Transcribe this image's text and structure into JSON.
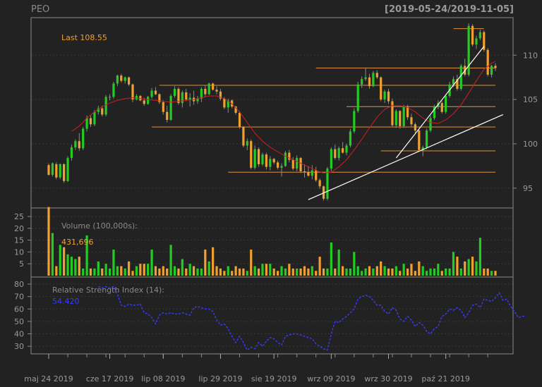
{
  "symbol": "PEO",
  "date_range": "[2019-05-24/2019-11-05]",
  "colors": {
    "background": "#222222",
    "up": "#22cc22",
    "down": "#f0a030",
    "grid": "#3a3a3a",
    "sma": "#cc2020",
    "rsi": "#3a3aff",
    "levels": "#e09040",
    "trendlines": "#ffffff",
    "last_label": "#f0a030",
    "panel_label": "#8a8a8a"
  },
  "chart_data": [
    {
      "type": "candlestick",
      "label": "Last 108.55",
      "ylim": [
        93,
        114
      ],
      "y_ticks": [
        95,
        100,
        105,
        110
      ],
      "x_tick_labels": [
        "maj 24 2019",
        "cze 17 2019",
        "lip 08 2019",
        "lip 29 2019",
        "sie 19 2019",
        "wrz 09 2019",
        "wrz 30 2019",
        "paź 21 2019"
      ],
      "x_tick_index": [
        0,
        16,
        30,
        45,
        59,
        74,
        89,
        104
      ],
      "n_periods": 118,
      "ohlc": [
        [
          97.6,
          97.8,
          96.4,
          96.5
        ],
        [
          96.5,
          97.9,
          96.3,
          97.8
        ],
        [
          97.7,
          97.9,
          96.0,
          96.2
        ],
        [
          96.2,
          97.8,
          96.0,
          97.7
        ],
        [
          97.7,
          97.8,
          95.6,
          95.8
        ],
        [
          95.8,
          98.6,
          95.7,
          98.4
        ],
        [
          98.4,
          99.9,
          98.1,
          99.6
        ],
        [
          99.6,
          100.5,
          99.3,
          100.3
        ],
        [
          100.3,
          101.2,
          99.2,
          99.5
        ],
        [
          99.5,
          101.9,
          99.3,
          101.7
        ],
        [
          101.7,
          103.2,
          101.4,
          102.9
        ],
        [
          102.9,
          103.2,
          101.9,
          102.2
        ],
        [
          102.2,
          103.8,
          102.0,
          103.6
        ],
        [
          103.6,
          104.3,
          103.3,
          104.0
        ],
        [
          104.0,
          104.3,
          103.1,
          103.3
        ],
        [
          103.3,
          105.5,
          103.1,
          105.3
        ],
        [
          105.3,
          105.6,
          104.9,
          105.3
        ],
        [
          105.3,
          107.0,
          105.1,
          106.8
        ],
        [
          106.8,
          107.8,
          106.5,
          107.7
        ],
        [
          107.7,
          107.9,
          106.9,
          107.1
        ],
        [
          107.1,
          107.6,
          106.8,
          107.5
        ],
        [
          107.5,
          107.6,
          106.5,
          106.7
        ],
        [
          106.7,
          106.8,
          104.7,
          105.0
        ],
        [
          105.0,
          105.6,
          104.9,
          105.4
        ],
        [
          105.4,
          105.5,
          104.8,
          104.9
        ],
        [
          104.9,
          105.2,
          104.3,
          104.5
        ],
        [
          104.5,
          105.4,
          104.4,
          105.3
        ],
        [
          105.3,
          106.3,
          105.1,
          106.0
        ],
        [
          106.0,
          106.4,
          105.5,
          105.6
        ],
        [
          105.6,
          105.7,
          104.5,
          104.7
        ],
        [
          104.7,
          104.9,
          103.3,
          103.6
        ],
        [
          103.6,
          104.3,
          102.4,
          102.7
        ],
        [
          102.7,
          105.6,
          102.6,
          105.4
        ],
        [
          105.4,
          106.5,
          105.2,
          106.2
        ],
        [
          106.2,
          106.4,
          104.4,
          104.6
        ],
        [
          104.6,
          106.0,
          104.1,
          105.8
        ],
        [
          105.8,
          106.2,
          104.8,
          105.0
        ],
        [
          105.0,
          105.7,
          104.2,
          105.2
        ],
        [
          105.2,
          106.0,
          104.4,
          104.8
        ],
        [
          104.8,
          105.4,
          104.5,
          105.1
        ],
        [
          105.1,
          106.4,
          104.7,
          106.2
        ],
        [
          106.2,
          106.6,
          105.3,
          105.6
        ],
        [
          105.6,
          106.9,
          105.5,
          106.8
        ],
        [
          106.8,
          106.9,
          106.0,
          106.1
        ],
        [
          106.1,
          106.5,
          105.6,
          105.9
        ],
        [
          105.9,
          106.2,
          104.9,
          105.1
        ],
        [
          105.1,
          105.3,
          103.9,
          104.1
        ],
        [
          104.1,
          105.1,
          103.5,
          104.9
        ],
        [
          104.9,
          105.0,
          104.0,
          104.2
        ],
        [
          104.2,
          104.3,
          103.3,
          103.5
        ],
        [
          103.5,
          103.7,
          101.7,
          101.9
        ],
        [
          101.9,
          102.0,
          99.6,
          99.8
        ],
        [
          99.8,
          100.6,
          99.3,
          100.3
        ],
        [
          100.3,
          100.5,
          97.1,
          97.3
        ],
        [
          97.3,
          99.8,
          97.1,
          99.4
        ],
        [
          99.4,
          99.6,
          97.4,
          97.7
        ],
        [
          97.7,
          99.0,
          97.5,
          98.8
        ],
        [
          98.8,
          99.0,
          97.1,
          97.4
        ],
        [
          97.4,
          98.6,
          97.0,
          98.3
        ],
        [
          98.3,
          98.4,
          97.7,
          97.9
        ],
        [
          97.9,
          98.1,
          97.1,
          97.3
        ],
        [
          97.3,
          97.8,
          96.3,
          97.5
        ],
        [
          97.5,
          99.2,
          97.4,
          99.0
        ],
        [
          99.0,
          99.3,
          97.9,
          98.2
        ],
        [
          98.2,
          98.5,
          97.0,
          97.2
        ],
        [
          97.2,
          98.7,
          96.9,
          98.4
        ],
        [
          98.4,
          98.5,
          96.7,
          96.9
        ],
        [
          96.9,
          97.7,
          96.2,
          96.8
        ],
        [
          96.8,
          97.5,
          96.3,
          96.4
        ],
        [
          96.4,
          97.6,
          96.0,
          97.0
        ],
        [
          97.0,
          97.4,
          95.7,
          95.9
        ],
        [
          95.9,
          96.1,
          94.9,
          95.2
        ],
        [
          95.2,
          95.3,
          93.6,
          93.8
        ],
        [
          93.8,
          97.4,
          93.6,
          97.2
        ],
        [
          97.2,
          99.6,
          96.9,
          99.4
        ],
        [
          99.4,
          99.9,
          98.2,
          98.4
        ],
        [
          98.4,
          99.7,
          98.1,
          99.5
        ],
        [
          99.5,
          100.2,
          98.9,
          99.0
        ],
        [
          99.0,
          100.0,
          98.7,
          99.8
        ],
        [
          99.8,
          101.7,
          99.6,
          101.4
        ],
        [
          101.4,
          104.0,
          101.2,
          103.7
        ],
        [
          103.7,
          107.0,
          103.5,
          106.7
        ],
        [
          106.7,
          107.6,
          106.3,
          107.3
        ],
        [
          107.3,
          108.6,
          107.1,
          107.5
        ],
        [
          107.5,
          107.9,
          106.2,
          106.5
        ],
        [
          106.5,
          108.2,
          106.4,
          108.0
        ],
        [
          108.0,
          108.3,
          107.3,
          107.5
        ],
        [
          107.5,
          107.6,
          104.8,
          105.0
        ],
        [
          105.0,
          106.1,
          104.6,
          105.9
        ],
        [
          105.9,
          106.2,
          104.5,
          104.8
        ],
        [
          104.8,
          105.1,
          101.9,
          102.1
        ],
        [
          102.1,
          103.9,
          101.8,
          103.7
        ],
        [
          103.7,
          103.8,
          101.7,
          102.0
        ],
        [
          102.0,
          104.4,
          101.8,
          104.2
        ],
        [
          104.2,
          104.4,
          102.7,
          103.0
        ],
        [
          103.0,
          103.4,
          101.9,
          102.2
        ],
        [
          102.2,
          102.4,
          101.2,
          101.5
        ],
        [
          101.5,
          101.6,
          99.1,
          99.3
        ],
        [
          99.3,
          99.8,
          98.6,
          99.6
        ],
        [
          99.6,
          101.7,
          99.4,
          101.5
        ],
        [
          101.5,
          103.2,
          101.3,
          102.9
        ],
        [
          102.9,
          104.4,
          102.7,
          104.2
        ],
        [
          104.2,
          104.9,
          103.9,
          104.6
        ],
        [
          104.6,
          104.8,
          103.4,
          103.6
        ],
        [
          103.6,
          105.6,
          103.4,
          105.4
        ],
        [
          105.4,
          107.0,
          105.2,
          106.7
        ],
        [
          106.7,
          107.6,
          106.4,
          107.3
        ],
        [
          107.3,
          107.8,
          106.0,
          106.2
        ],
        [
          106.2,
          109.0,
          106.0,
          108.8
        ],
        [
          108.8,
          109.6,
          107.6,
          107.8
        ],
        [
          107.8,
          113.6,
          107.6,
          113.3
        ],
        [
          113.3,
          113.5,
          111.0,
          111.2
        ],
        [
          111.2,
          112.2,
          110.7,
          111.9
        ],
        [
          111.9,
          112.9,
          111.7,
          112.6
        ],
        [
          112.6,
          112.8,
          110.4,
          110.6
        ],
        [
          110.6,
          110.8,
          107.6,
          107.8
        ],
        [
          107.8,
          108.9,
          107.5,
          108.8
        ],
        [
          108.8,
          109.1,
          108.2,
          108.55
        ]
      ],
      "sma": [
        [
          6,
          101.4
        ],
        [
          8,
          102.0
        ],
        [
          10,
          102.9
        ],
        [
          12,
          103.6
        ],
        [
          14,
          104.2
        ],
        [
          16,
          104.6
        ],
        [
          18,
          104.9
        ],
        [
          20,
          105.1
        ],
        [
          22,
          105.2
        ],
        [
          24,
          105.1
        ],
        [
          26,
          105.0
        ],
        [
          28,
          104.9
        ],
        [
          30,
          104.8
        ],
        [
          32,
          104.7
        ],
        [
          34,
          104.8
        ],
        [
          36,
          104.9
        ],
        [
          38,
          105.0
        ],
        [
          40,
          105.2
        ],
        [
          42,
          105.4
        ],
        [
          44,
          105.4
        ],
        [
          46,
          105.1
        ],
        [
          48,
          104.5
        ],
        [
          50,
          103.6
        ],
        [
          52,
          102.4
        ],
        [
          54,
          101.2
        ],
        [
          56,
          100.3
        ],
        [
          58,
          99.6
        ],
        [
          60,
          99.1
        ],
        [
          62,
          98.6
        ],
        [
          64,
          98.2
        ],
        [
          66,
          97.8
        ],
        [
          68,
          97.4
        ],
        [
          70,
          97.0
        ],
        [
          72,
          96.7
        ],
        [
          74,
          96.8
        ],
        [
          76,
          97.4
        ],
        [
          78,
          98.2
        ],
        [
          80,
          99.3
        ],
        [
          82,
          100.5
        ],
        [
          84,
          101.8
        ],
        [
          86,
          103.0
        ],
        [
          88,
          103.9
        ],
        [
          90,
          104.3
        ],
        [
          92,
          104.3
        ],
        [
          94,
          104.1
        ],
        [
          96,
          103.6
        ],
        [
          98,
          102.9
        ],
        [
          100,
          102.4
        ],
        [
          102,
          102.3
        ],
        [
          104,
          102.7
        ],
        [
          106,
          103.4
        ],
        [
          108,
          104.4
        ],
        [
          110,
          105.7
        ],
        [
          112,
          107.1
        ],
        [
          114,
          108.4
        ],
        [
          116,
          109.1
        ],
        [
          117,
          109.3
        ]
      ],
      "levels": [
        {
          "value": 113.0,
          "from": 106,
          "to": 114
        },
        {
          "value": 108.55,
          "from": 70,
          "to": 117
        },
        {
          "value": 106.6,
          "from": 29,
          "to": 117
        },
        {
          "value": 104.2,
          "from": 78,
          "to": 117
        },
        {
          "value": 101.9,
          "from": 27,
          "to": 117
        },
        {
          "value": 99.2,
          "from": 87,
          "to": 117
        },
        {
          "value": 96.8,
          "from": 47,
          "to": 117
        }
      ],
      "trendlines": [
        {
          "x1": 68,
          "y1": 93.7,
          "x2": 119,
          "y2": 103.3
        },
        {
          "x1": 91,
          "y1": 98.4,
          "x2": 114,
          "y2": 111.0
        }
      ]
    },
    {
      "type": "bar",
      "label": "Volume (100,000s):",
      "last_value": "431,696",
      "ylim": [
        0,
        28
      ],
      "y_ticks": [
        5,
        10,
        15,
        20,
        25
      ],
      "values": [
        29,
        18,
        4,
        13,
        12,
        9,
        8,
        7,
        8,
        3,
        17,
        3,
        3,
        6,
        3,
        5,
        3,
        11,
        4,
        4,
        3,
        6,
        2,
        4,
        5,
        5,
        5,
        11,
        4,
        3,
        4,
        3,
        13,
        4,
        3,
        7,
        3,
        5,
        4,
        3,
        3,
        11,
        6,
        12,
        4,
        3,
        2,
        4,
        2,
        4,
        3,
        3,
        2,
        11,
        4,
        3,
        5,
        5,
        5,
        3,
        2,
        4,
        3,
        5,
        3,
        3,
        3,
        4,
        3,
        4,
        2,
        8,
        3,
        3,
        14,
        3,
        11,
        4,
        3,
        3,
        10,
        4,
        2,
        3,
        4,
        3,
        4,
        6,
        4,
        3,
        3,
        4,
        2,
        5,
        3,
        5,
        2,
        6,
        4,
        2,
        3,
        3,
        5,
        2,
        3,
        3,
        10,
        8,
        3,
        6,
        7,
        8,
        6,
        16,
        3,
        3,
        2,
        2
      ],
      "colors_by": "candle"
    },
    {
      "type": "line",
      "label": "Relative Strength Index (14):",
      "last_value": "54.420",
      "ylim": [
        25,
        84
      ],
      "y_ticks": [
        30,
        40,
        50,
        60,
        70,
        80
      ],
      "start_index": 13,
      "values": [
        78,
        77,
        78,
        77,
        78,
        72,
        63,
        62,
        64,
        63,
        63,
        64,
        57,
        56,
        53,
        48,
        55,
        57,
        56,
        57,
        56,
        56,
        57,
        56,
        55,
        61,
        62,
        61,
        60,
        60,
        58,
        51,
        47,
        48,
        44,
        38,
        33,
        38,
        33,
        27,
        29,
        28,
        33,
        30,
        34,
        37,
        36,
        33,
        31,
        38,
        39,
        40,
        40,
        39,
        38,
        37,
        36,
        32,
        30,
        28,
        27,
        40,
        50,
        49,
        52,
        54,
        57,
        60,
        68,
        70,
        71,
        70,
        67,
        63,
        63,
        58,
        56,
        61,
        59,
        52,
        50,
        54,
        51,
        46,
        49,
        47,
        42,
        40,
        44,
        46,
        54,
        56,
        60,
        59,
        61,
        59,
        53,
        57,
        63,
        64,
        61,
        68,
        67,
        66,
        69,
        73,
        67,
        68,
        62,
        58,
        53,
        54,
        54.42
      ]
    }
  ]
}
